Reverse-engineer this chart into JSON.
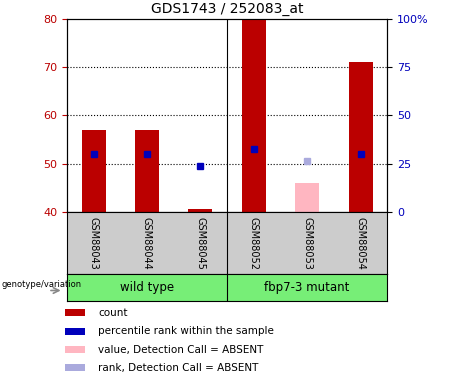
{
  "title": "GDS1743 / 252083_at",
  "samples": [
    "GSM88043",
    "GSM88044",
    "GSM88045",
    "GSM88052",
    "GSM88053",
    "GSM88054"
  ],
  "red_bars": [
    57.0,
    57.0,
    40.5,
    80.0,
    null,
    71.0
  ],
  "blue_squares": [
    52.0,
    52.0,
    49.5,
    53.0,
    null,
    52.0
  ],
  "pink_bar": [
    null,
    null,
    null,
    null,
    46.0,
    null
  ],
  "lightblue_square": [
    null,
    null,
    null,
    null,
    50.5,
    null
  ],
  "ymin": 40,
  "ymax": 80,
  "yticks_left": [
    40,
    50,
    60,
    70,
    80
  ],
  "yticks_right": [
    0,
    25,
    50,
    75,
    100
  ],
  "yticks_right_labels": [
    "0",
    "25",
    "50",
    "75",
    "100%"
  ],
  "dotted_lines": [
    50,
    60,
    70
  ],
  "bar_width": 0.45,
  "red_color": "#BB0000",
  "pink_color": "#FFB6C1",
  "blue_color": "#0000BB",
  "lightblue_color": "#AAAADD",
  "left_axis_color": "#BB0000",
  "right_axis_color": "#0000BB",
  "group1_name": "wild type",
  "group2_name": "fbp7-3 mutant",
  "group_bg_color": "#77EE77",
  "sample_bg_color": "#CCCCCC",
  "genotype_label": "genotype/variation",
  "legend_items": [
    {
      "label": "count",
      "color": "#BB0000"
    },
    {
      "label": "percentile rank within the sample",
      "color": "#0000BB"
    },
    {
      "label": "value, Detection Call = ABSENT",
      "color": "#FFB6C1"
    },
    {
      "label": "rank, Detection Call = ABSENT",
      "color": "#AAAADD"
    }
  ]
}
